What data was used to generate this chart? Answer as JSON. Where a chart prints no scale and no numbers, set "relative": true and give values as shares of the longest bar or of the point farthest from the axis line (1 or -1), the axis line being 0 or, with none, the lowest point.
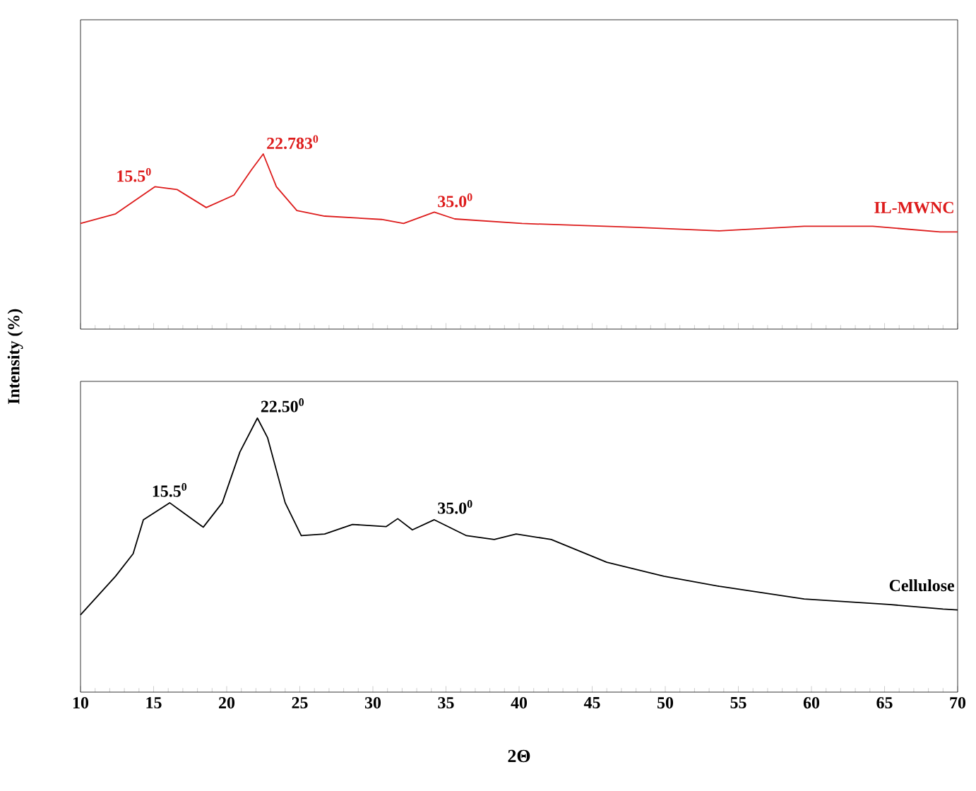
{
  "chart_data": [
    {
      "type": "line",
      "relative": true,
      "xlim": [
        10,
        70
      ],
      "xticks": [
        10,
        15,
        20,
        25,
        30,
        35,
        40,
        45,
        50,
        55,
        60,
        65,
        70
      ],
      "tick_labels": false,
      "x": [
        10,
        12.4,
        15.1,
        16.6,
        18.6,
        20.5,
        21.7,
        22.5,
        23.4,
        24.8,
        26.7,
        30.6,
        32.1,
        34.2,
        35.6,
        40.2,
        48.0,
        53.7,
        59.5,
        64.2,
        68.8,
        70
      ],
      "series": [
        {
          "name": "IL-MWNC",
          "color": "#dd1c1c",
          "values": [
            0.603,
            0.658,
            0.813,
            0.797,
            0.694,
            0.765,
            0.91,
            1.0,
            0.813,
            0.677,
            0.645,
            0.626,
            0.603,
            0.668,
            0.629,
            0.603,
            0.581,
            0.561,
            0.587,
            0.587,
            0.555,
            0.555
          ]
        }
      ],
      "annotations": [
        {
          "text": "15.5$^{0}$",
          "x": 15.1,
          "y": 0.813
        },
        {
          "text": "22.783$^{0}$",
          "x": 22.5,
          "y": 1.0
        },
        {
          "text": "35.0$^{0}$",
          "x": 34.2,
          "y": 0.668
        }
      ]
    },
    {
      "type": "line",
      "relative": true,
      "xlim": [
        10,
        70
      ],
      "xticks": [
        10,
        15,
        20,
        25,
        30,
        35,
        40,
        45,
        50,
        55,
        60,
        65,
        70
      ],
      "tick_labels": "x",
      "xlabel": "2Θ",
      "ylabel": "Intensity (%)",
      "x": [
        10,
        12.4,
        13.6,
        14.3,
        16.1,
        18.4,
        19.7,
        20.9,
        22.1,
        22.8,
        24.0,
        25.1,
        26.7,
        28.6,
        30.9,
        31.7,
        32.7,
        34.2,
        36.4,
        38.3,
        39.8,
        42.2,
        46.0,
        49.9,
        53.7,
        59.5,
        65.3,
        69.0,
        70
      ],
      "series": [
        {
          "name": "Cellulose",
          "color": "#000000",
          "values": [
            0.282,
            0.423,
            0.505,
            0.629,
            0.691,
            0.602,
            0.691,
            0.876,
            1.0,
            0.928,
            0.691,
            0.571,
            0.577,
            0.612,
            0.604,
            0.633,
            0.592,
            0.629,
            0.571,
            0.557,
            0.577,
            0.557,
            0.474,
            0.423,
            0.386,
            0.34,
            0.32,
            0.303,
            0.3
          ]
        }
      ],
      "annotations": [
        {
          "text": "15.5$^{0}$",
          "x": 16.1,
          "y": 0.691
        },
        {
          "text": "22.50$^{0}$",
          "x": 22.1,
          "y": 1.0
        },
        {
          "text": "35.0$^{0}$",
          "x": 34.2,
          "y": 0.629
        }
      ]
    }
  ]
}
